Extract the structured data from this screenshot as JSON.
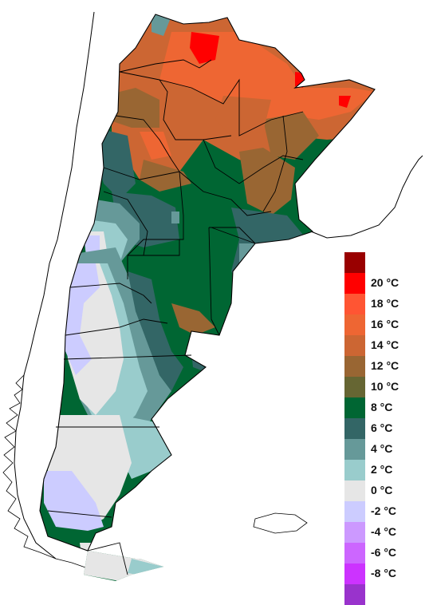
{
  "legend": {
    "rows": [
      {
        "label": "",
        "color": "#990000"
      },
      {
        "label": "20 °C",
        "color": "#ff0000"
      },
      {
        "label": "18 °C",
        "color": "#ff5533"
      },
      {
        "label": "16 °C",
        "color": "#ee6633"
      },
      {
        "label": "14 °C",
        "color": "#cc6633"
      },
      {
        "label": "12 °C",
        "color": "#996633"
      },
      {
        "label": "10 °C",
        "color": "#666633"
      },
      {
        "label": "8 °C",
        "color": "#006633"
      },
      {
        "label": "6 °C",
        "color": "#336666"
      },
      {
        "label": "4 °C",
        "color": "#669999"
      },
      {
        "label": "2 °C",
        "color": "#99cccc"
      },
      {
        "label": "0 °C",
        "color": "#e6e6e6"
      },
      {
        "label": "-2 °C",
        "color": "#ccccff"
      },
      {
        "label": "-4 °C",
        "color": "#cc99ff"
      },
      {
        "label": "-6 °C",
        "color": "#cc66ff"
      },
      {
        "label": "-8 °C",
        "color": "#cc33ff"
      },
      {
        "label": "",
        "color": "#9933cc"
      }
    ]
  },
  "map_colors": {
    "ocean": "#ffffff",
    "border": "#000000"
  }
}
